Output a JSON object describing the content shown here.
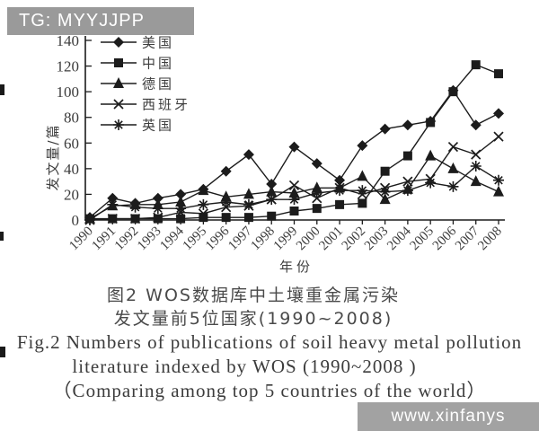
{
  "banner": {
    "tag": "TG: MYYJJPP"
  },
  "watermark": {
    "text": "www.xinfanys"
  },
  "caption": {
    "cn_line1": "图2  WOS数据库中土壤重金属污染",
    "cn_line2": "发文量前5位国家(1990~2008)",
    "en_line1": "Fig.2  Numbers of publications of soil heavy metal pollution",
    "en_line2": "literature indexed by WOS (1990~2008 )",
    "en_line3": "（Comparing among top 5 countries of the world）"
  },
  "chart_data": {
    "type": "line",
    "title": "图2 WOS数据库中土壤重金属污染发文量前5位国家(1990~2008)",
    "xlabel": "年份",
    "ylabel": "发文量/篇",
    "ylim": [
      0,
      140
    ],
    "yticks": [
      0,
      20,
      40,
      60,
      80,
      100,
      120,
      140
    ],
    "grid": false,
    "legend_position": "inside top-left",
    "ink_color": "#1c1c1c",
    "x": [
      1990,
      1991,
      1992,
      1993,
      1994,
      1995,
      1996,
      1997,
      1998,
      1999,
      2000,
      2001,
      2002,
      2003,
      2004,
      2005,
      2006,
      2007,
      2008
    ],
    "series": [
      {
        "name": "美国",
        "slug": "usa",
        "marker": "diamond",
        "values": [
          2,
          17,
          13,
          17,
          20,
          24,
          38,
          51,
          28,
          57,
          44,
          31,
          58,
          71,
          74,
          77,
          101,
          74,
          83
        ]
      },
      {
        "name": "中国",
        "slug": "china",
        "marker": "square",
        "values": [
          1,
          1,
          1,
          1,
          1,
          2,
          2,
          2,
          3,
          7,
          9,
          12,
          13,
          38,
          50,
          76,
          100,
          121,
          114
        ]
      },
      {
        "name": "德国",
        "slug": "germany",
        "marker": "triangle",
        "values": [
          1,
          11,
          12,
          12,
          14,
          23,
          18,
          20,
          22,
          21,
          25,
          25,
          34,
          16,
          24,
          50,
          40,
          30,
          22
        ]
      },
      {
        "name": "西班牙",
        "slug": "spain",
        "marker": "x",
        "values": [
          0,
          1,
          1,
          2,
          6,
          5,
          10,
          11,
          16,
          27,
          17,
          25,
          20,
          25,
          30,
          32,
          57,
          51,
          65
        ]
      },
      {
        "name": "英国",
        "slug": "uk",
        "marker": "star",
        "values": [
          0,
          12,
          10,
          9,
          9,
          12,
          14,
          12,
          16,
          16,
          21,
          23,
          23,
          22,
          23,
          29,
          26,
          42,
          31
        ]
      }
    ]
  }
}
